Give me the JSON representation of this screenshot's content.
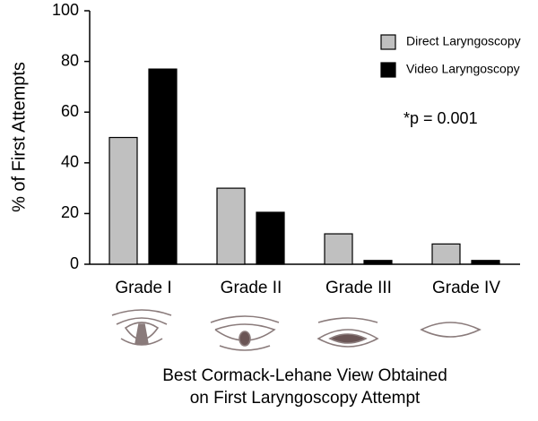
{
  "chart_data": {
    "type": "bar",
    "categories": [
      "Grade I",
      "Grade II",
      "Grade III",
      "Grade IV"
    ],
    "series": [
      {
        "name": "Direct Laryngoscopy",
        "color": "#c0c0c0",
        "values": [
          50,
          30,
          12,
          8
        ]
      },
      {
        "name": "Video Laryngoscopy",
        "color": "#000000",
        "values": [
          77,
          20.5,
          1.5,
          1.5
        ]
      }
    ],
    "y_label": "% of First Attempts",
    "x_label": [
      "Best Cormack-Lehane View Obtained",
      "on First Laryngoscopy Attempt"
    ],
    "annotation": "*p = 0.001",
    "ylim": [
      0,
      100
    ],
    "yticks": [
      0,
      20,
      40,
      60,
      80,
      100
    ],
    "grid": false,
    "legend": "top right"
  }
}
